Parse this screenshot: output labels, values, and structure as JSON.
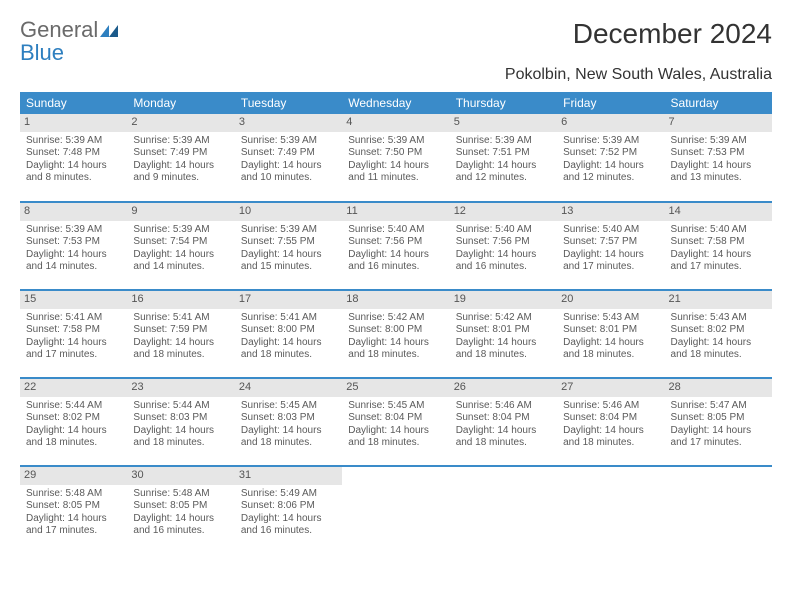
{
  "brand": {
    "general": "General",
    "blue": "Blue"
  },
  "colors": {
    "header_bg": "#3a8bc9",
    "header_fg": "#ffffff",
    "daynum_bg": "#e6e6e6",
    "row_border": "#3a8bc9",
    "brand_general": "#6a6a6a",
    "brand_blue": "#2e7fbf"
  },
  "title": "December 2024",
  "location": "Pokolbin, New South Wales, Australia",
  "weekdays": [
    "Sunday",
    "Monday",
    "Tuesday",
    "Wednesday",
    "Thursday",
    "Friday",
    "Saturday"
  ],
  "weeks": [
    [
      {
        "day": "1",
        "sunrise": "Sunrise: 5:39 AM",
        "sunset": "Sunset: 7:48 PM",
        "d1": "Daylight: 14 hours",
        "d2": "and 8 minutes."
      },
      {
        "day": "2",
        "sunrise": "Sunrise: 5:39 AM",
        "sunset": "Sunset: 7:49 PM",
        "d1": "Daylight: 14 hours",
        "d2": "and 9 minutes."
      },
      {
        "day": "3",
        "sunrise": "Sunrise: 5:39 AM",
        "sunset": "Sunset: 7:49 PM",
        "d1": "Daylight: 14 hours",
        "d2": "and 10 minutes."
      },
      {
        "day": "4",
        "sunrise": "Sunrise: 5:39 AM",
        "sunset": "Sunset: 7:50 PM",
        "d1": "Daylight: 14 hours",
        "d2": "and 11 minutes."
      },
      {
        "day": "5",
        "sunrise": "Sunrise: 5:39 AM",
        "sunset": "Sunset: 7:51 PM",
        "d1": "Daylight: 14 hours",
        "d2": "and 12 minutes."
      },
      {
        "day": "6",
        "sunrise": "Sunrise: 5:39 AM",
        "sunset": "Sunset: 7:52 PM",
        "d1": "Daylight: 14 hours",
        "d2": "and 12 minutes."
      },
      {
        "day": "7",
        "sunrise": "Sunrise: 5:39 AM",
        "sunset": "Sunset: 7:53 PM",
        "d1": "Daylight: 14 hours",
        "d2": "and 13 minutes."
      }
    ],
    [
      {
        "day": "8",
        "sunrise": "Sunrise: 5:39 AM",
        "sunset": "Sunset: 7:53 PM",
        "d1": "Daylight: 14 hours",
        "d2": "and 14 minutes."
      },
      {
        "day": "9",
        "sunrise": "Sunrise: 5:39 AM",
        "sunset": "Sunset: 7:54 PM",
        "d1": "Daylight: 14 hours",
        "d2": "and 14 minutes."
      },
      {
        "day": "10",
        "sunrise": "Sunrise: 5:39 AM",
        "sunset": "Sunset: 7:55 PM",
        "d1": "Daylight: 14 hours",
        "d2": "and 15 minutes."
      },
      {
        "day": "11",
        "sunrise": "Sunrise: 5:40 AM",
        "sunset": "Sunset: 7:56 PM",
        "d1": "Daylight: 14 hours",
        "d2": "and 16 minutes."
      },
      {
        "day": "12",
        "sunrise": "Sunrise: 5:40 AM",
        "sunset": "Sunset: 7:56 PM",
        "d1": "Daylight: 14 hours",
        "d2": "and 16 minutes."
      },
      {
        "day": "13",
        "sunrise": "Sunrise: 5:40 AM",
        "sunset": "Sunset: 7:57 PM",
        "d1": "Daylight: 14 hours",
        "d2": "and 17 minutes."
      },
      {
        "day": "14",
        "sunrise": "Sunrise: 5:40 AM",
        "sunset": "Sunset: 7:58 PM",
        "d1": "Daylight: 14 hours",
        "d2": "and 17 minutes."
      }
    ],
    [
      {
        "day": "15",
        "sunrise": "Sunrise: 5:41 AM",
        "sunset": "Sunset: 7:58 PM",
        "d1": "Daylight: 14 hours",
        "d2": "and 17 minutes."
      },
      {
        "day": "16",
        "sunrise": "Sunrise: 5:41 AM",
        "sunset": "Sunset: 7:59 PM",
        "d1": "Daylight: 14 hours",
        "d2": "and 18 minutes."
      },
      {
        "day": "17",
        "sunrise": "Sunrise: 5:41 AM",
        "sunset": "Sunset: 8:00 PM",
        "d1": "Daylight: 14 hours",
        "d2": "and 18 minutes."
      },
      {
        "day": "18",
        "sunrise": "Sunrise: 5:42 AM",
        "sunset": "Sunset: 8:00 PM",
        "d1": "Daylight: 14 hours",
        "d2": "and 18 minutes."
      },
      {
        "day": "19",
        "sunrise": "Sunrise: 5:42 AM",
        "sunset": "Sunset: 8:01 PM",
        "d1": "Daylight: 14 hours",
        "d2": "and 18 minutes."
      },
      {
        "day": "20",
        "sunrise": "Sunrise: 5:43 AM",
        "sunset": "Sunset: 8:01 PM",
        "d1": "Daylight: 14 hours",
        "d2": "and 18 minutes."
      },
      {
        "day": "21",
        "sunrise": "Sunrise: 5:43 AM",
        "sunset": "Sunset: 8:02 PM",
        "d1": "Daylight: 14 hours",
        "d2": "and 18 minutes."
      }
    ],
    [
      {
        "day": "22",
        "sunrise": "Sunrise: 5:44 AM",
        "sunset": "Sunset: 8:02 PM",
        "d1": "Daylight: 14 hours",
        "d2": "and 18 minutes."
      },
      {
        "day": "23",
        "sunrise": "Sunrise: 5:44 AM",
        "sunset": "Sunset: 8:03 PM",
        "d1": "Daylight: 14 hours",
        "d2": "and 18 minutes."
      },
      {
        "day": "24",
        "sunrise": "Sunrise: 5:45 AM",
        "sunset": "Sunset: 8:03 PM",
        "d1": "Daylight: 14 hours",
        "d2": "and 18 minutes."
      },
      {
        "day": "25",
        "sunrise": "Sunrise: 5:45 AM",
        "sunset": "Sunset: 8:04 PM",
        "d1": "Daylight: 14 hours",
        "d2": "and 18 minutes."
      },
      {
        "day": "26",
        "sunrise": "Sunrise: 5:46 AM",
        "sunset": "Sunset: 8:04 PM",
        "d1": "Daylight: 14 hours",
        "d2": "and 18 minutes."
      },
      {
        "day": "27",
        "sunrise": "Sunrise: 5:46 AM",
        "sunset": "Sunset: 8:04 PM",
        "d1": "Daylight: 14 hours",
        "d2": "and 18 minutes."
      },
      {
        "day": "28",
        "sunrise": "Sunrise: 5:47 AM",
        "sunset": "Sunset: 8:05 PM",
        "d1": "Daylight: 14 hours",
        "d2": "and 17 minutes."
      }
    ],
    [
      {
        "day": "29",
        "sunrise": "Sunrise: 5:48 AM",
        "sunset": "Sunset: 8:05 PM",
        "d1": "Daylight: 14 hours",
        "d2": "and 17 minutes."
      },
      {
        "day": "30",
        "sunrise": "Sunrise: 5:48 AM",
        "sunset": "Sunset: 8:05 PM",
        "d1": "Daylight: 14 hours",
        "d2": "and 16 minutes."
      },
      {
        "day": "31",
        "sunrise": "Sunrise: 5:49 AM",
        "sunset": "Sunset: 8:06 PM",
        "d1": "Daylight: 14 hours",
        "d2": "and 16 minutes."
      },
      {
        "empty": true
      },
      {
        "empty": true
      },
      {
        "empty": true
      },
      {
        "empty": true
      }
    ]
  ]
}
